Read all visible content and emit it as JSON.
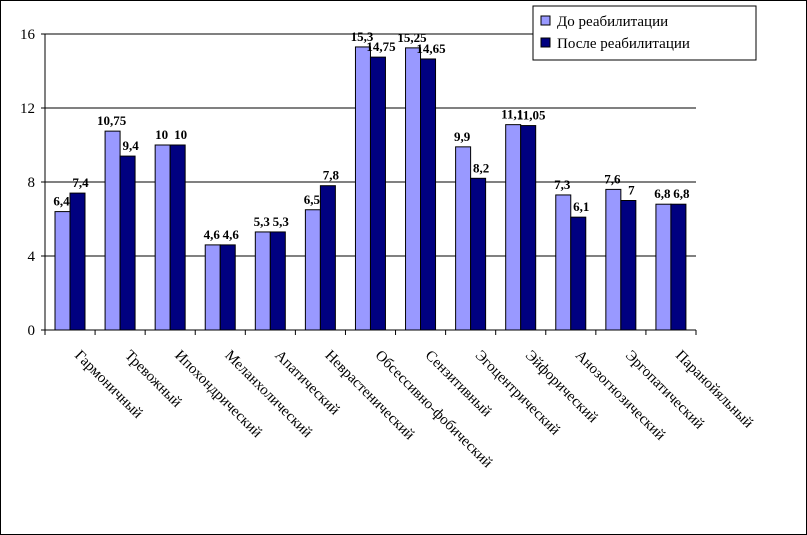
{
  "chart_data": {
    "type": "bar",
    "title": "",
    "xlabel": "",
    "ylabel": "",
    "ylim": [
      0,
      16
    ],
    "yticks": [
      0,
      4,
      8,
      12,
      16
    ],
    "grid": true,
    "legend_position": "top-right",
    "categories": [
      "Гармоничный",
      "Тревожный",
      "Ипохондрический",
      "Меланхолический",
      "Апатический",
      "Неврастенический",
      "Обсессивно-фобический",
      "Сензитивный",
      "Эгоцентрический",
      "Эйфорический",
      "Анозогнозический",
      "Эргопатический",
      "Паранойяльный"
    ],
    "series": [
      {
        "name": "До реабилитации",
        "color": "#9999ff",
        "values": [
          6.4,
          10.75,
          10,
          4.6,
          5.3,
          6.5,
          15.3,
          15.25,
          9.9,
          11.1,
          7.3,
          7.6,
          6.8
        ],
        "labels": [
          "6,4",
          "10,75",
          "10",
          "4,6",
          "5,3",
          "6,5",
          "15,3",
          "15,25",
          "9,9",
          "11,1",
          "7,3",
          "7,6",
          "6,8"
        ]
      },
      {
        "name": "После реабилитации",
        "color": "#000080",
        "values": [
          7.4,
          9.4,
          10,
          4.6,
          5.3,
          7.8,
          14.75,
          14.65,
          8.2,
          11.05,
          6.1,
          7,
          6.8
        ],
        "labels": [
          "7,4",
          "9,4",
          "10",
          "4,6",
          "5,3",
          "7,8",
          "14,75",
          "14,65",
          "8,2",
          "11,05",
          "6,1",
          "7",
          "6,8"
        ]
      }
    ]
  }
}
